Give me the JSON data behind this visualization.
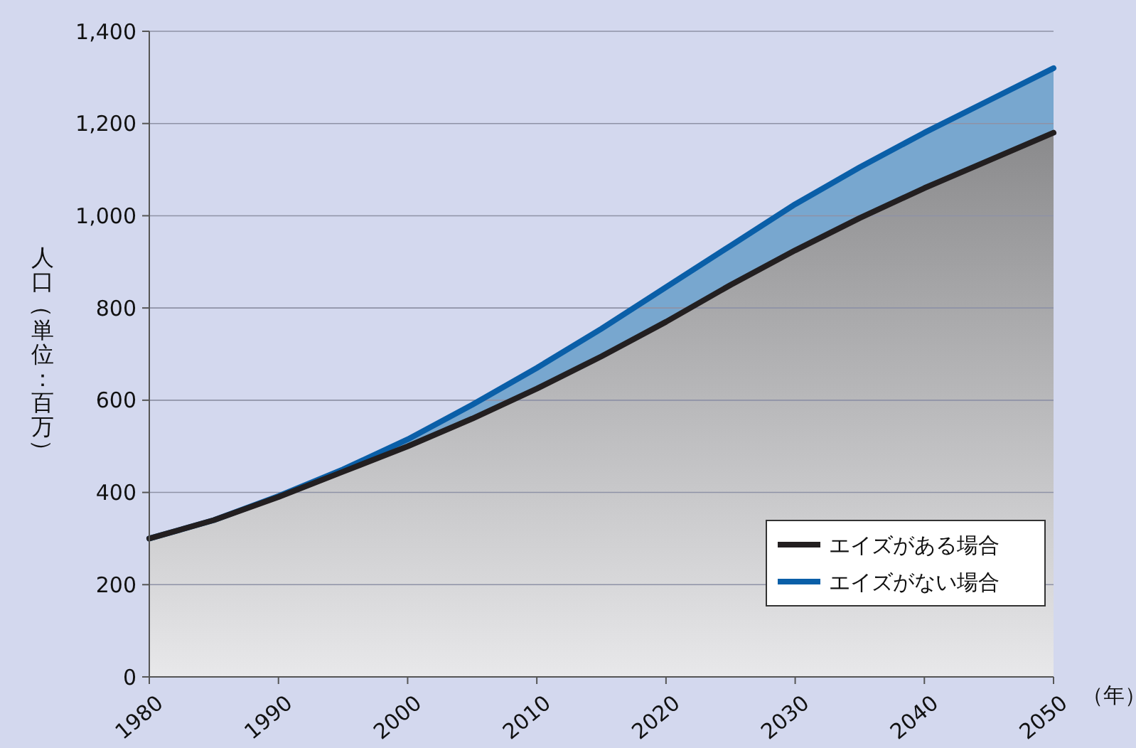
{
  "chart_data": {
    "type": "area",
    "ylabel": "人口（単位：百万）",
    "xlabel": "（年）",
    "x": [
      1980,
      1985,
      1990,
      1995,
      2000,
      2005,
      2010,
      2015,
      2020,
      2025,
      2030,
      2035,
      2040,
      2045,
      2050
    ],
    "series": [
      {
        "name": "エイズがない場合",
        "color": "#0a5fa8",
        "values": [
          300,
          340,
          392,
          450,
          515,
          590,
          670,
          755,
          845,
          935,
          1025,
          1105,
          1180,
          1250,
          1320
        ]
      },
      {
        "name": "エイズがある場合",
        "color": "#231f20",
        "values": [
          300,
          340,
          390,
          445,
          500,
          560,
          625,
          695,
          770,
          850,
          925,
          995,
          1060,
          1120,
          1180
        ]
      }
    ],
    "xlim": [
      1980,
      2050
    ],
    "xticks": [
      1980,
      1990,
      2000,
      2010,
      2020,
      2030,
      2040,
      2050
    ],
    "ylim": [
      0,
      1400
    ],
    "yticks": [
      0,
      {
        "value": 200,
        "label": "200"
      },
      {
        "value": 400,
        "label": "400"
      },
      {
        "value": 600,
        "label": "600"
      },
      {
        "value": 800,
        "label": "800"
      },
      {
        "value": 1000,
        "label": "1,000"
      },
      {
        "value": 1200,
        "label": "1,200"
      },
      {
        "value": 1400,
        "label": "1,400"
      }
    ],
    "grid": "y",
    "legend": "bottom right",
    "line_style": "solid",
    "marker": "none"
  }
}
